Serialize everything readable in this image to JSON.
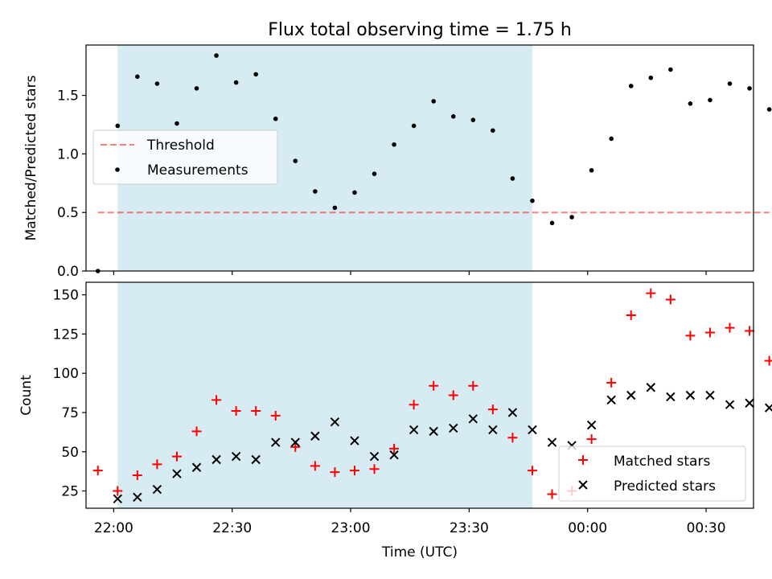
{
  "figure": {
    "title": "Flux total observing time = 1.75 h",
    "xlabel": "Time (UTC)"
  },
  "x_ticks": [
    "22:00",
    "22:30",
    "23:00",
    "23:30",
    "00:00",
    "00:30"
  ],
  "colors": {
    "shaded_region": "#add8e6",
    "threshold": "#ff0000",
    "measurements": "#000000",
    "matched": "#ff0000",
    "predicted": "#000000"
  },
  "chart_data": [
    {
      "type": "scatter",
      "ylabel": "Matched/Predicted stars",
      "ylim": [
        0,
        1.93
      ],
      "yticks": [
        "0.0",
        "0.5",
        "1.0",
        "1.5"
      ],
      "shaded_span": [
        "22:01",
        "23:46"
      ],
      "threshold": {
        "name": "Threshold",
        "value": 0.5,
        "style": "dashed",
        "x_range": [
          "21:56",
          "00:46"
        ]
      },
      "series": [
        {
          "name": "Measurements",
          "marker": "dot",
          "x": [
            "21:56",
            "22:01",
            "22:06",
            "22:11",
            "22:16",
            "22:21",
            "22:26",
            "22:31",
            "22:36",
            "22:41",
            "22:46",
            "22:51",
            "22:56",
            "23:01",
            "23:06",
            "23:11",
            "23:16",
            "23:21",
            "23:26",
            "23:31",
            "23:36",
            "23:41",
            "23:46",
            "23:51",
            "23:56",
            "00:01",
            "00:06",
            "00:11",
            "00:16",
            "00:21",
            "00:26",
            "00:31",
            "00:36",
            "00:41",
            "00:46"
          ],
          "y": [
            0.0,
            1.24,
            1.66,
            1.6,
            1.26,
            1.56,
            1.84,
            1.61,
            1.68,
            1.3,
            0.94,
            0.68,
            0.54,
            0.67,
            0.83,
            1.08,
            1.24,
            1.45,
            1.32,
            1.29,
            1.2,
            0.79,
            0.6,
            0.41,
            0.46,
            0.86,
            1.13,
            1.58,
            1.65,
            1.72,
            1.43,
            1.46,
            1.6,
            1.56,
            1.38
          ]
        }
      ],
      "legend": {
        "position": "center-left",
        "entries": [
          "Threshold",
          "Measurements"
        ]
      }
    },
    {
      "type": "scatter",
      "ylabel": "Count",
      "ylim": [
        14,
        158
      ],
      "yticks": [
        "25",
        "50",
        "75",
        "100",
        "125",
        "150"
      ],
      "shaded_span": [
        "22:01",
        "23:46"
      ],
      "series": [
        {
          "name": "Matched stars",
          "marker": "+",
          "x": [
            "21:56",
            "22:01",
            "22:06",
            "22:11",
            "22:16",
            "22:21",
            "22:26",
            "22:31",
            "22:36",
            "22:41",
            "22:46",
            "22:51",
            "22:56",
            "23:01",
            "23:06",
            "23:11",
            "23:16",
            "23:21",
            "23:26",
            "23:31",
            "23:36",
            "23:41",
            "23:46",
            "23:51",
            "23:56",
            "00:01",
            "00:06",
            "00:11",
            "00:16",
            "00:21",
            "00:26",
            "00:31",
            "00:36",
            "00:41",
            "00:46"
          ],
          "y": [
            38,
            25,
            35,
            42,
            47,
            63,
            83,
            76,
            76,
            73,
            53,
            41,
            37,
            38,
            39,
            52,
            80,
            92,
            86,
            92,
            77,
            59,
            38,
            23,
            25,
            58,
            94,
            137,
            151,
            147,
            124,
            126,
            129,
            127,
            108
          ]
        },
        {
          "name": "Predicted stars",
          "marker": "x",
          "x": [
            "22:01",
            "22:06",
            "22:11",
            "22:16",
            "22:21",
            "22:26",
            "22:31",
            "22:36",
            "22:41",
            "22:46",
            "22:51",
            "22:56",
            "23:01",
            "23:06",
            "23:11",
            "23:16",
            "23:21",
            "23:26",
            "23:31",
            "23:36",
            "23:41",
            "23:46",
            "23:51",
            "23:56",
            "00:01",
            "00:06",
            "00:11",
            "00:16",
            "00:21",
            "00:26",
            "00:31",
            "00:36",
            "00:41",
            "00:46"
          ],
          "y": [
            20,
            21,
            26,
            36,
            40,
            45,
            47,
            45,
            56,
            56,
            60,
            69,
            57,
            47,
            48,
            64,
            63,
            65,
            71,
            64,
            75,
            64,
            56,
            54,
            67,
            83,
            86,
            91,
            85,
            86,
            86,
            80,
            81,
            78
          ]
        }
      ],
      "legend": {
        "position": "lower-right",
        "entries": [
          "Matched stars",
          "Predicted stars"
        ]
      }
    }
  ]
}
